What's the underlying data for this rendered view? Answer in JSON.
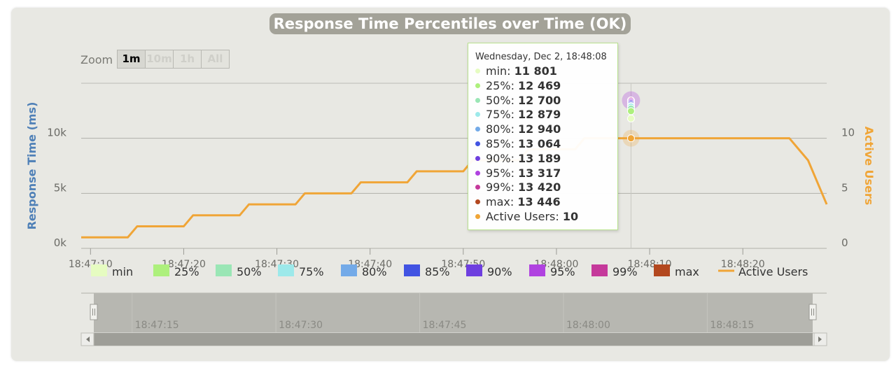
{
  "window": {
    "title": "Response Time Percentiles over Time (OK)"
  },
  "zoom": {
    "label": "Zoom",
    "buttons": [
      {
        "label": "1m",
        "active": true
      },
      {
        "label": "10m",
        "active": false
      },
      {
        "label": "1h",
        "active": false
      },
      {
        "label": "All",
        "active": false
      }
    ]
  },
  "tooltip": {
    "header": "Wednesday, Dec 2, 18:48:08",
    "rows": [
      {
        "name": "min",
        "value": "11 801",
        "color": "#e6fcc1"
      },
      {
        "name": "25%",
        "value": "12 469",
        "color": "#adf07c"
      },
      {
        "name": "50%",
        "value": "12 700",
        "color": "#9ae6b5"
      },
      {
        "name": "75%",
        "value": "12 879",
        "color": "#9de9ea"
      },
      {
        "name": "80%",
        "value": "12 940",
        "color": "#73aae8"
      },
      {
        "name": "85%",
        "value": "13 064",
        "color": "#4153e2"
      },
      {
        "name": "90%",
        "value": "13 189",
        "color": "#6e3fdf"
      },
      {
        "name": "95%",
        "value": "13 317",
        "color": "#b042e0"
      },
      {
        "name": "99%",
        "value": "13 420",
        "color": "#c5399b"
      },
      {
        "name": "max",
        "value": "13 446",
        "color": "#b3481f"
      },
      {
        "name": "Active Users",
        "value": "10",
        "color": "#f0a537"
      }
    ]
  },
  "chart_data": {
    "type": "line",
    "title": "Response Time Percentiles over Time (OK)",
    "ylabel": "Response Time (ms)",
    "y2label": "Active Users",
    "yticks": [
      "0k",
      "5k",
      "10k"
    ],
    "ylim": [
      0,
      15000
    ],
    "y2ticks": [
      "0",
      "5",
      "10"
    ],
    "y2lim": [
      0,
      15
    ],
    "xlim": [
      "18:47:09",
      "18:48:29"
    ],
    "xticks": [
      "18:47:10",
      "18:47:20",
      "18:47:30",
      "18:47:40",
      "18:47:50",
      "18:48:00",
      "18:48:10",
      "18:48:20"
    ],
    "grid": true,
    "legend_position": "bottom",
    "legend": [
      {
        "name": "min",
        "color": "#e6fcc1"
      },
      {
        "name": "25%",
        "color": "#adf07c"
      },
      {
        "name": "50%",
        "color": "#9ae6b5"
      },
      {
        "name": "75%",
        "color": "#9de9ea"
      },
      {
        "name": "80%",
        "color": "#73aae8"
      },
      {
        "name": "85%",
        "color": "#4153e2"
      },
      {
        "name": "90%",
        "color": "#6e3fdf"
      },
      {
        "name": "95%",
        "color": "#b042e0"
      },
      {
        "name": "99%",
        "color": "#c5399b"
      },
      {
        "name": "max",
        "color": "#b3481f"
      },
      {
        "name": "Active Users",
        "color": "#f0a537"
      }
    ],
    "percentile_time": "18:48:08",
    "percentiles": [
      {
        "name": "min",
        "value": 11801
      },
      {
        "name": "25%",
        "value": 12469
      },
      {
        "name": "50%",
        "value": 12700
      },
      {
        "name": "75%",
        "value": 12879
      },
      {
        "name": "80%",
        "value": 12940
      },
      {
        "name": "85%",
        "value": 13064
      },
      {
        "name": "90%",
        "value": 13189
      },
      {
        "name": "95%",
        "value": 13317
      },
      {
        "name": "99%",
        "value": 13420
      },
      {
        "name": "max",
        "value": 13446
      }
    ],
    "active_users": {
      "name": "Active Users",
      "x": [
        "18:47:09",
        "18:47:14",
        "18:47:15",
        "18:47:20",
        "18:47:21",
        "18:47:26",
        "18:47:27",
        "18:47:32",
        "18:47:33",
        "18:47:38",
        "18:47:39",
        "18:47:44",
        "18:47:45",
        "18:47:50",
        "18:47:51",
        "18:47:56",
        "18:47:57",
        "18:48:02",
        "18:48:03",
        "18:48:25",
        "18:48:27",
        "18:48:29"
      ],
      "values": [
        1,
        1,
        2,
        2,
        3,
        3,
        4,
        4,
        5,
        5,
        6,
        6,
        7,
        7,
        8,
        8,
        9,
        9,
        10,
        10,
        8,
        4
      ]
    },
    "navigator": {
      "xticks": [
        "18:47:15",
        "18:47:30",
        "18:47:45",
        "18:48:00",
        "18:48:15"
      ]
    }
  }
}
